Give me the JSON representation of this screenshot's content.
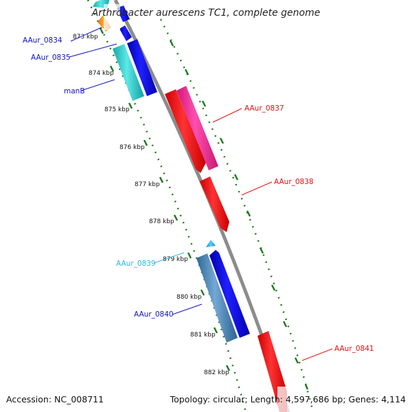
{
  "map_title": "Arthrobacter aurescens TC1, complete genome",
  "footer": {
    "accession": "Accession: NC_008711",
    "summary": "Topology: circular; Length: 4,597,686 bp; Genes: 4,114"
  },
  "ticks": [
    "873 kbp",
    "874 kbp",
    "875 kbp",
    "876 kbp",
    "877 kbp",
    "878 kbp",
    "879 kbp",
    "880 kbp",
    "881 kbp",
    "882 kbp"
  ],
  "gene_labels": {
    "aaur_0834": "AAur_0834",
    "aaur_0835": "AAur_0835",
    "manb": "manB",
    "aaur_0837": "AAur_0837",
    "aaur_0838": "AAur_0838",
    "aaur_0839": "AAur_0839",
    "aaur_0840": "AAur_0840",
    "aaur_0841": "AAur_0841"
  },
  "colors": {
    "backbone": "#8c8c8c",
    "dotted_ring": "#1f7a1f",
    "label_blue": "#1010c0",
    "label_red": "#e01010",
    "label_cyan": "#25b8e0",
    "gene_blue": "#1010e6",
    "gene_cyan": "#22cccc",
    "gene_orange": "#ff9922",
    "gene_red": "#ff1111",
    "gene_pink": "#ff2a9a",
    "gene_steel": "#4a82b4",
    "gene_lightblue": "#2ab4ff"
  }
}
